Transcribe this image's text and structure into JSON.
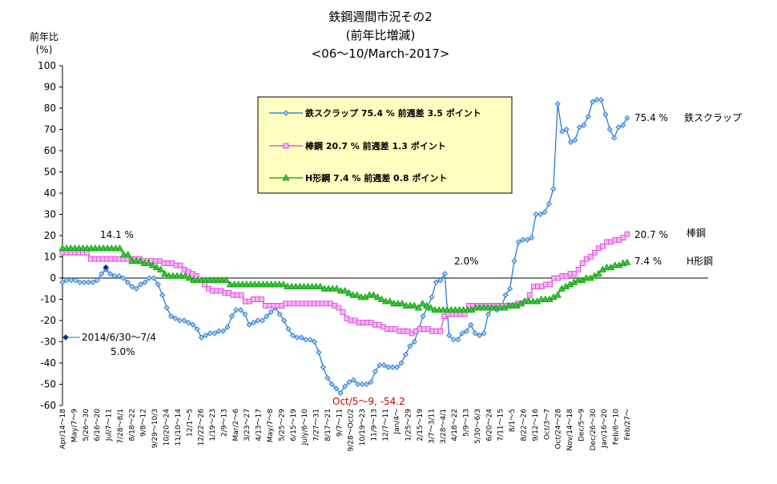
{
  "chart_data": {
    "type": "line",
    "title": [
      "鉄鋼週間市況その2",
      "(前年比増減)",
      "<06〜10/March-2017>"
    ],
    "ylabel": [
      "前年比",
      "(%)"
    ],
    "ylim": [
      -60,
      100
    ],
    "yticks": [
      -60,
      -50,
      -40,
      -30,
      -20,
      -10,
      0,
      10,
      20,
      30,
      40,
      50,
      60,
      70,
      80,
      90,
      100
    ],
    "xlabels": [
      "Apr/14〜18",
      "May/7〜9",
      "5/26〜30",
      "6/16〜20",
      "Jul/7〜11",
      "7/28〜8/1",
      "8/18〜22",
      "9/8〜12",
      "9/29〜10/3",
      "10/20〜24",
      "11/10〜14",
      "12/1〜5",
      "12/22〜26",
      "1/19〜23",
      "2/9〜13",
      "Mar/2〜6",
      "3/23〜27",
      "4/13〜17",
      "May/7〜8",
      "5/25〜29",
      "6/15〜19",
      "July/6〜10",
      "7/27〜31",
      "8/17〜21",
      "9/7〜11",
      "9/28〜Oct/2",
      "10/19〜23",
      "11/9〜13",
      "12/7〜11",
      "Jan/4〜",
      "1/25〜29",
      "2/15〜19",
      "3/7〜3/11",
      "3/28〜4/1",
      "4/18〜22",
      "5/9〜13",
      "5/30〜6/3",
      "6/20〜24",
      "7/11〜15",
      "8/1〜5",
      "8/22〜26",
      "9/12〜16",
      "Oct/3〜7",
      "Oct/24〜28",
      "Nov/14〜18",
      "Dec/5〜9",
      "Dec/26〜30",
      "Jan/16〜20",
      "Feb/6〜10",
      "Feb/27〜"
    ],
    "series": [
      {
        "name": "鉄スクラップ 75.4 % 前週差 3.5 ポイント",
        "color": "#1f6fd0",
        "marker": "diamond",
        "values": [
          -2,
          -1,
          -1,
          -1,
          -2,
          -2,
          -2,
          -2,
          -1,
          2,
          4,
          2,
          1,
          1,
          0,
          -2,
          -4,
          -5,
          -3,
          -2,
          0,
          0,
          -3,
          -8,
          -14,
          -18,
          -19,
          -20,
          -20,
          -21,
          -22,
          -24,
          -28,
          -27,
          -26,
          -26,
          -25,
          -25,
          -23,
          -18,
          -15,
          -15,
          -17,
          -22,
          -21,
          -20,
          -20,
          -18,
          -16,
          -14,
          -17,
          -20,
          -24,
          -27,
          -28,
          -28,
          -29,
          -29,
          -30,
          -35,
          -42,
          -47,
          -50,
          -52,
          -54.2,
          -51,
          -49,
          -48,
          -50,
          -50,
          -50,
          -49,
          -44,
          -41,
          -41,
          -42,
          -42,
          -42,
          -40,
          -36,
          -32,
          -30,
          -24,
          -18,
          -14,
          -9,
          -2,
          -1,
          2,
          -27,
          -29,
          -29,
          -26,
          -25,
          -22,
          -26,
          -27,
          -26,
          -17,
          -14,
          -15,
          -14,
          -8,
          -5,
          8,
          17,
          18,
          18,
          19,
          30,
          30,
          31,
          35,
          42,
          82,
          69,
          70,
          64,
          65,
          71,
          72,
          76,
          83,
          84,
          84,
          77,
          70,
          66,
          71,
          72,
          75.4
        ]
      },
      {
        "name": "棒鋼 20.7 % 前週差 1.3 ポイント",
        "color": "#d040d0",
        "marker": "square",
        "values": [
          12,
          12,
          12,
          12,
          12,
          12,
          12,
          9,
          9,
          9,
          9,
          9,
          9,
          9,
          9,
          9,
          9,
          9,
          9,
          9,
          8,
          8,
          8,
          8,
          8,
          7,
          7,
          7,
          6,
          6,
          4,
          3,
          2,
          1,
          -1,
          -3,
          -5,
          -6,
          -6,
          -6,
          -7,
          -7,
          -8,
          -8,
          -8,
          -11,
          -11,
          -10,
          -10,
          -10,
          -13,
          -13,
          -13,
          -13,
          -13,
          -12,
          -12,
          -12,
          -12,
          -12,
          -12,
          -12,
          -12,
          -12,
          -12,
          -12,
          -12,
          -13,
          -14,
          -16,
          -19,
          -20,
          -20,
          -21,
          -21,
          -21,
          -21,
          -22,
          -22,
          -23,
          -24,
          -24,
          -24,
          -25,
          -25,
          -25,
          -26,
          -25,
          -24,
          -24,
          -24,
          -25,
          -25,
          -25,
          -18,
          -17,
          -17,
          -17,
          -17,
          -17,
          -13,
          -13,
          -13,
          -13,
          -13,
          -13,
          -13,
          -13,
          -13,
          -13,
          -13,
          -13,
          -12,
          -12,
          -11,
          -8,
          -4,
          -4,
          -4,
          -3,
          -3,
          0,
          0,
          1,
          1,
          2,
          2,
          4,
          7,
          9,
          10,
          12,
          14,
          15,
          17,
          17,
          18,
          18,
          19,
          20.7
        ]
      },
      {
        "name": "H形鋼 7.4 % 前週差 0.8 ポイント",
        "color": "#00a000",
        "marker": "triangle",
        "values": [
          14,
          14,
          14,
          14,
          14,
          14,
          14,
          14,
          14,
          14,
          14,
          14,
          14,
          14,
          14,
          11,
          11,
          8,
          8,
          8,
          7,
          7,
          6,
          5,
          4,
          2,
          1,
          1,
          1,
          1,
          1,
          0,
          -1,
          -1,
          -1,
          -1,
          -1,
          -1,
          -1,
          -1,
          -1,
          -3,
          -3,
          -3,
          -3,
          -3,
          -3,
          -3,
          -3,
          -3,
          -3,
          -3,
          -3,
          -3,
          -3,
          -4,
          -4,
          -4,
          -4,
          -4,
          -4,
          -4,
          -4,
          -4,
          -5,
          -5,
          -5,
          -5,
          -6,
          -6,
          -7,
          -8,
          -8,
          -9,
          -9,
          -8,
          -8,
          -9,
          -10,
          -11,
          -11,
          -12,
          -12,
          -12,
          -13,
          -13,
          -13,
          -14,
          -12,
          -13,
          -14,
          -15,
          -15,
          -15,
          -15,
          -15,
          -15,
          -15,
          -15,
          -15,
          -15,
          -14,
          -14,
          -14,
          -14,
          -14,
          -14,
          -14,
          -14,
          -13,
          -13,
          -13,
          -12,
          -11,
          -11,
          -11,
          -11,
          -10,
          -10,
          -10,
          -9,
          -8,
          -5,
          -4,
          -3,
          -2,
          -1,
          -1,
          0,
          0,
          1,
          2,
          4,
          5,
          5,
          6,
          6,
          7,
          7.4
        ]
      }
    ],
    "annotations": {
      "note_141": "14.1 %",
      "note_2014": "2014/6/30〜7/4",
      "note_50": "5.0%",
      "note_20": "2.0%",
      "note_oct": "Oct/5〜9, -54.2",
      "end_scrap_val": "75.4 %",
      "end_scrap_name": "鉄スクラップ",
      "end_bar_val": "20.7 %",
      "end_bar_name": "棒鋼",
      "end_h_val": "7.4 %",
      "end_h_name": "H形鋼"
    },
    "legend_position": "top-center",
    "grid": false,
    "legend_bg": "#ffffc0"
  }
}
